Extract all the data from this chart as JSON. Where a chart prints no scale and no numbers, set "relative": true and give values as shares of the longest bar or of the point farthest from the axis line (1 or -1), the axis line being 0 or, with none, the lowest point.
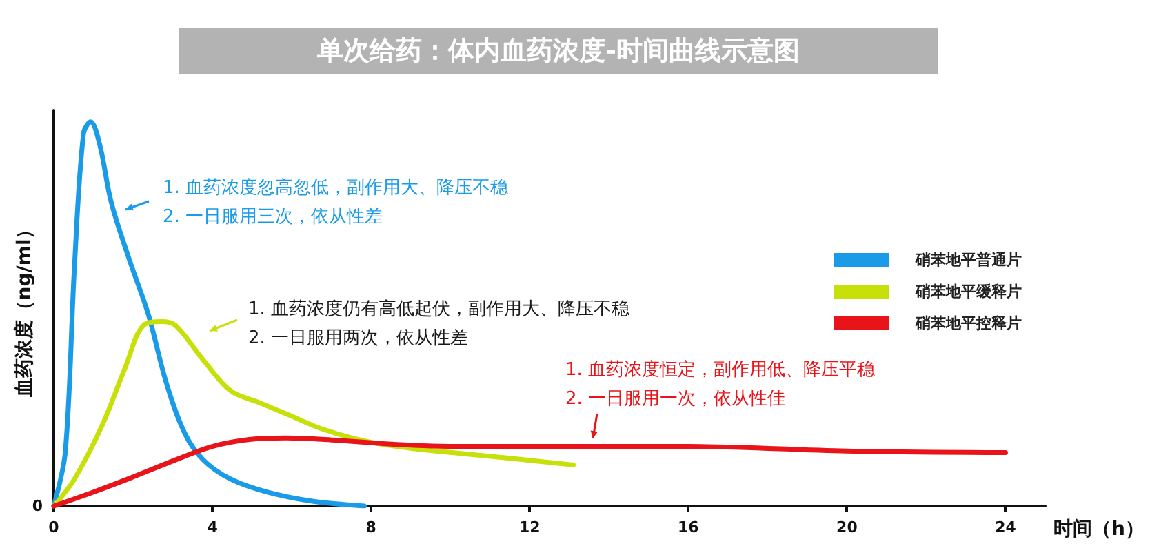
{
  "chart_data": {
    "type": "line",
    "title": "单次给药：体内血药浓度-时间曲线示意图",
    "xlabel": "时间（h）",
    "ylabel": "血药浓度（ng/ml）",
    "relative": true,
    "xlim": [
      0,
      25
    ],
    "xticks": [
      0,
      4,
      8,
      12,
      16,
      20,
      24
    ],
    "legend": "right",
    "grid": false,
    "marker": "none",
    "line_style": "solid",
    "series": [
      {
        "name": "硝苯地平普通片",
        "color": "#1a9be8",
        "x": [
          0,
          0.29,
          0.52,
          0.75,
          0.93,
          1.16,
          1.45,
          1.91,
          2.38,
          2.84,
          3.3,
          3.77,
          4.46,
          5.39,
          6.55,
          7.83
        ],
        "values": [
          0,
          0.14,
          0.62,
          0.97,
          1,
          0.94,
          0.79,
          0.64,
          0.5,
          0.32,
          0.19,
          0.12,
          0.07,
          0.036,
          0.012,
          0
        ]
      },
      {
        "name": "硝苯地平缓释片",
        "color": "#c8e00a",
        "x": [
          0,
          0.52,
          1.22,
          1.8,
          2.26,
          2.72,
          3.07,
          3.77,
          4.46,
          5.16,
          5.86,
          6.78,
          7.94,
          9.1,
          10.26,
          11.42,
          13.1
        ],
        "values": [
          0,
          0.07,
          0.21,
          0.36,
          0.47,
          0.48,
          0.47,
          0.38,
          0.3,
          0.27,
          0.24,
          0.2,
          0.167,
          0.149,
          0.137,
          0.125,
          0.107
        ]
      },
      {
        "name": "硝苯地平控释片",
        "color": "#e8141a",
        "x": [
          0,
          0.99,
          1.91,
          3.07,
          4,
          4.93,
          5.86,
          7.01,
          8.52,
          10.26,
          13,
          16,
          20,
          24
        ],
        "values": [
          0,
          0.036,
          0.072,
          0.12,
          0.155,
          0.173,
          0.177,
          0.172,
          0.161,
          0.155,
          0.155,
          0.155,
          0.143,
          0.139
        ]
      }
    ],
    "annotations": [
      "0",
      "1. 血药浓度忽高忽低，副作用大、降压不稳\n2. 一日服用三次，依从性差",
      "1. 血药浓度仍有高低起伏，副作用大、降压不稳\n2. 一日服用两次，依从性差",
      "1. 血药浓度恒定，副作用低、降压平稳\n2. 一日服用一次，依从性佳"
    ]
  }
}
